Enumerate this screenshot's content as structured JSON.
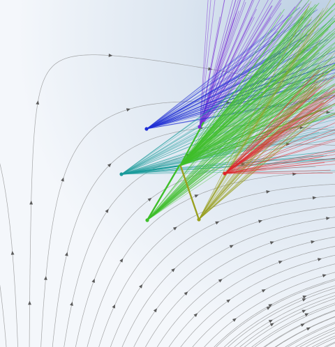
{
  "figure": {
    "background": {
      "base": "#ffffff",
      "tint": "#c9d8e8"
    },
    "flow_field": {
      "line_color": "#8a8a8a",
      "arrow_color": "#5a5a5a"
    },
    "sources": [
      {
        "id": "blue",
        "color": "#1f2fd6"
      },
      {
        "id": "purple",
        "color": "#7a2bd6"
      },
      {
        "id": "teal",
        "color": "#1a9b9b"
      },
      {
        "id": "green",
        "color": "#3fbf2a"
      },
      {
        "id": "olive",
        "color": "#9aa020"
      },
      {
        "id": "red",
        "color": "#e0242a"
      }
    ]
  }
}
